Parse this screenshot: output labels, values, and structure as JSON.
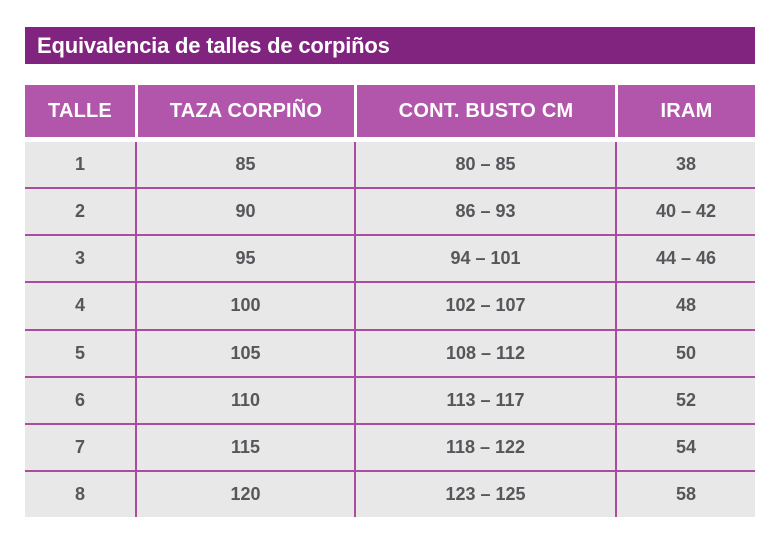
{
  "colors": {
    "title_bg": "#81247f",
    "title_text": "#ffffff",
    "header_bg": "#b156ab",
    "header_text": "#ffffff",
    "row_bg": "#e8e8e9",
    "line": "#aa4ca2",
    "cell_text": "#57565a",
    "page_bg": "#ffffff"
  },
  "title_bar": {
    "text": "Equivalencia de talles de corpiños"
  },
  "table": {
    "columns": [
      "TALLE",
      "TAZA CORPIÑO",
      "CONT. BUSTO CM",
      "IRAM"
    ],
    "rows": [
      [
        "1",
        "85",
        "80 – 85",
        "38"
      ],
      [
        "2",
        "90",
        "86 – 93",
        "40 – 42"
      ],
      [
        "3",
        "95",
        "94 – 101",
        "44 – 46"
      ],
      [
        "4",
        "100",
        "102 – 107",
        "48"
      ],
      [
        "5",
        "105",
        "108 – 112",
        "50"
      ],
      [
        "6",
        "110",
        "113 – 117",
        "52"
      ],
      [
        "7",
        "115",
        "118 – 122",
        "54"
      ],
      [
        "8",
        "120",
        "123 – 125",
        "58"
      ]
    ]
  },
  "chart_data": {
    "type": "table",
    "title": "Equivalencia de talles de corpiños",
    "columns": [
      "TALLE",
      "TAZA CORPIÑO",
      "CONT. BUSTO CM",
      "IRAM"
    ],
    "rows": [
      [
        "1",
        "85",
        "80 – 85",
        "38"
      ],
      [
        "2",
        "90",
        "86 – 93",
        "40 – 42"
      ],
      [
        "3",
        "95",
        "94 – 101",
        "44 – 46"
      ],
      [
        "4",
        "100",
        "102 – 107",
        "48"
      ],
      [
        "5",
        "105",
        "108 – 112",
        "50"
      ],
      [
        "6",
        "110",
        "113 – 117",
        "52"
      ],
      [
        "7",
        "115",
        "118 – 122",
        "54"
      ],
      [
        "8",
        "120",
        "123 – 125",
        "58"
      ]
    ]
  }
}
